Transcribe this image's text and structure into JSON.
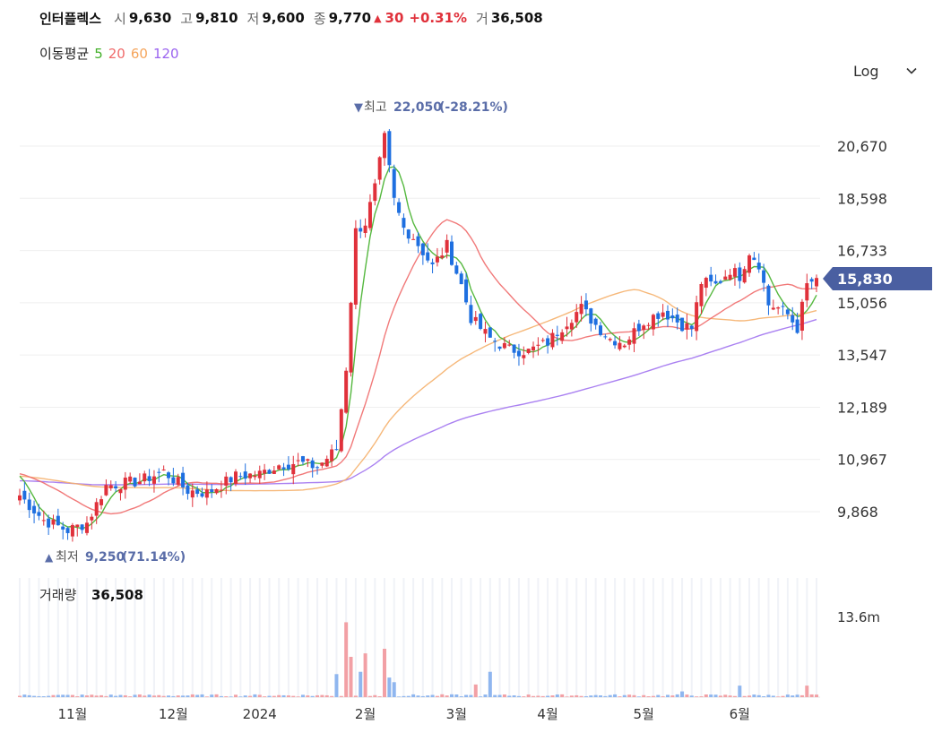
{
  "header": {
    "name": "인터플렉스",
    "open_label": "시",
    "open": "9,630",
    "high_label": "고",
    "high": "9,810",
    "low_label": "저",
    "low": "9,600",
    "close_label": "종",
    "close": "9,770",
    "change": "30",
    "change_pct": "+0.31%",
    "volume_label": "거",
    "volume": "36,508"
  },
  "ma_legend": {
    "label": "이동평균",
    "periods": [
      "5",
      "20",
      "60",
      "120"
    ]
  },
  "scale_toggle": {
    "label": "Log"
  },
  "colors": {
    "up": "#e0313b",
    "down": "#1e6fe0",
    "ma5": "#43b02a",
    "ma20": "#f06a6a",
    "ma60": "#f5b06c",
    "ma120": "#a173ef",
    "price_tag": "#4a5fa1",
    "marker": "#5a6da8"
  },
  "chart_data": {
    "type": "candlestick",
    "scale": "log",
    "y_ticks": [
      "20,670",
      "18,598",
      "16,733",
      "15,056",
      "13,547",
      "12,189",
      "10,967",
      "9,868"
    ],
    "x_ticks": [
      "11월",
      "12월",
      "2024",
      "2월",
      "3월",
      "4월",
      "5월",
      "6월"
    ],
    "last_price_tag": "15,830",
    "high_marker": {
      "label": "최고",
      "value": "22,050",
      "pct": "(-28.21%)"
    },
    "low_marker": {
      "label": "최저",
      "value": "9,250",
      "pct": "(71.14%)"
    },
    "volume_label": "거래량",
    "volume_value": "36,508",
    "volume_tick": "13.6m",
    "keypoints": [
      [
        0,
        10200
      ],
      [
        5,
        9700
      ],
      [
        10,
        9500
      ],
      [
        14,
        9650
      ],
      [
        18,
        10400
      ],
      [
        25,
        10500
      ],
      [
        30,
        10700
      ],
      [
        35,
        10300
      ],
      [
        39,
        10250
      ],
      [
        45,
        10600
      ],
      [
        50,
        10650
      ],
      [
        54,
        10850
      ],
      [
        58,
        10900
      ],
      [
        62,
        10800
      ],
      [
        66,
        11200
      ],
      [
        68,
        13200
      ],
      [
        70,
        17400
      ],
      [
        72,
        17700
      ],
      [
        74,
        19000
      ],
      [
        76,
        21000
      ],
      [
        78,
        18500
      ],
      [
        80,
        17500
      ],
      [
        82,
        17200
      ],
      [
        86,
        16200
      ],
      [
        89,
        16900
      ],
      [
        92,
        15600
      ],
      [
        94,
        14600
      ],
      [
        98,
        14000
      ],
      [
        102,
        13700
      ],
      [
        106,
        13650
      ],
      [
        110,
        13900
      ],
      [
        114,
        14500
      ],
      [
        117,
        14900
      ],
      [
        120,
        14400
      ],
      [
        123,
        14000
      ],
      [
        126,
        13900
      ],
      [
        130,
        14500
      ],
      [
        134,
        14800
      ],
      [
        138,
        14400
      ],
      [
        140,
        14300
      ],
      [
        142,
        15700
      ],
      [
        145,
        15600
      ],
      [
        148,
        16100
      ],
      [
        150,
        15900
      ],
      [
        152,
        16700
      ],
      [
        154,
        16300
      ],
      [
        156,
        15000
      ],
      [
        158,
        14900
      ],
      [
        160,
        14700
      ],
      [
        162,
        14300
      ],
      [
        164,
        15600
      ],
      [
        166,
        15830
      ]
    ],
    "volume_spikes": [
      [
        66,
        0.2
      ],
      [
        68,
        0.65
      ],
      [
        69,
        0.35
      ],
      [
        71,
        0.22
      ],
      [
        72,
        0.38
      ],
      [
        76,
        0.42
      ],
      [
        77,
        0.17
      ],
      [
        78,
        0.13
      ],
      [
        95,
        0.11
      ],
      [
        98,
        0.22
      ],
      [
        138,
        0.05
      ],
      [
        150,
        0.1
      ],
      [
        164,
        0.1
      ]
    ]
  }
}
